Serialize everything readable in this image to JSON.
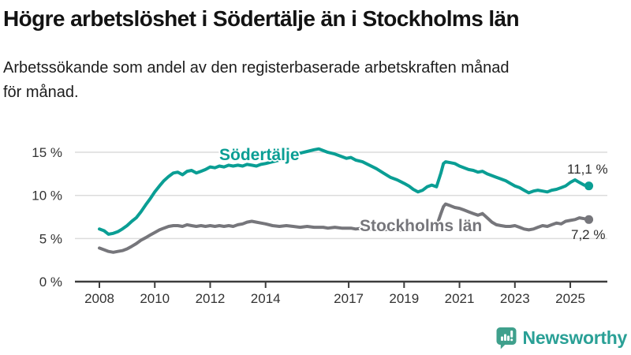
{
  "header": {
    "title": "Högre arbetslöshet i Södertälje än i Stockholms län",
    "subtitle_lines": [
      "Arbetssökande som andel av den registerbaserade arbetskraften månad",
      "för månad."
    ]
  },
  "chart_data": {
    "type": "line",
    "title": "Högre arbetslöshet i Södertälje än i Stockholms län",
    "subtitle": "Arbetssökande som andel av den registerbaserade arbetskraften månad för månad.",
    "grid": "horizontal-only",
    "x_axis": {
      "tick_labels": [
        "2008",
        "2010",
        "2012",
        "2014",
        "2017",
        "2019",
        "2021",
        "2023",
        "2025"
      ],
      "tick_values": [
        2008,
        2010,
        2012,
        2014,
        2017,
        2019,
        2021,
        2023,
        2025
      ],
      "range": [
        2007.1,
        2026.3
      ]
    },
    "y_axis": {
      "tick_labels": [
        "0 %",
        "5 %",
        "10 %",
        "15 %"
      ],
      "tick_values": [
        0,
        5,
        10,
        15
      ],
      "range": [
        0,
        16.8
      ],
      "unit": "%"
    },
    "x": [
      2008.0,
      2008.17,
      2008.33,
      2008.5,
      2008.67,
      2008.83,
      2009.0,
      2009.17,
      2009.33,
      2009.5,
      2009.67,
      2009.83,
      2010.0,
      2010.17,
      2010.33,
      2010.5,
      2010.67,
      2010.83,
      2011.0,
      2011.17,
      2011.33,
      2011.5,
      2011.67,
      2011.83,
      2012.0,
      2012.17,
      2012.33,
      2012.5,
      2012.67,
      2012.83,
      2013.0,
      2013.17,
      2013.33,
      2013.5,
      2013.67,
      2013.83,
      2014.0,
      2014.25,
      2014.5,
      2014.75,
      2015.0,
      2015.25,
      2015.5,
      2015.75,
      2015.92,
      2016.08,
      2016.25,
      2016.5,
      2016.75,
      2016.92,
      2017.08,
      2017.25,
      2017.5,
      2017.75,
      2018.0,
      2018.25,
      2018.5,
      2018.75,
      2019.0,
      2019.17,
      2019.33,
      2019.5,
      2019.67,
      2019.83,
      2020.0,
      2020.17,
      2020.33,
      2020.42,
      2020.5,
      2020.67,
      2020.83,
      2021.0,
      2021.17,
      2021.33,
      2021.5,
      2021.67,
      2021.83,
      2022.0,
      2022.17,
      2022.33,
      2022.5,
      2022.67,
      2022.83,
      2023.0,
      2023.17,
      2023.33,
      2023.5,
      2023.67,
      2023.83,
      2024.0,
      2024.17,
      2024.33,
      2024.5,
      2024.67,
      2024.83,
      2025.0,
      2025.17,
      2025.33,
      2025.5,
      2025.67
    ],
    "series": [
      {
        "name": "Södertälje",
        "color": "#0a9e94",
        "end_label": "11,1 %",
        "end_value": 11.1,
        "values": [
          6.1,
          5.9,
          5.5,
          5.6,
          5.8,
          6.1,
          6.5,
          7.0,
          7.4,
          8.1,
          8.9,
          9.6,
          10.4,
          11.1,
          11.7,
          12.2,
          12.6,
          12.7,
          12.4,
          12.8,
          12.9,
          12.6,
          12.8,
          13.0,
          13.3,
          13.2,
          13.4,
          13.3,
          13.5,
          13.4,
          13.5,
          13.4,
          13.6,
          13.5,
          13.4,
          13.6,
          13.7,
          13.9,
          14.1,
          14.4,
          14.7,
          14.9,
          15.1,
          15.3,
          15.4,
          15.2,
          15.0,
          14.8,
          14.5,
          14.3,
          14.4,
          14.1,
          13.9,
          13.5,
          13.1,
          12.6,
          12.1,
          11.8,
          11.4,
          11.1,
          10.7,
          10.4,
          10.6,
          11.0,
          11.2,
          11.0,
          12.6,
          13.7,
          13.9,
          13.8,
          13.7,
          13.4,
          13.2,
          13.0,
          12.9,
          12.7,
          12.8,
          12.5,
          12.3,
          12.1,
          11.9,
          11.7,
          11.4,
          11.1,
          10.9,
          10.6,
          10.3,
          10.5,
          10.6,
          10.5,
          10.4,
          10.6,
          10.7,
          10.9,
          11.1,
          11.5,
          11.8,
          11.5,
          11.2,
          11.1
        ]
      },
      {
        "name": "Stockholms län",
        "color": "#76767b",
        "end_label": "7,2 %",
        "end_value": 7.2,
        "values": [
          3.9,
          3.7,
          3.5,
          3.4,
          3.5,
          3.6,
          3.8,
          4.1,
          4.4,
          4.8,
          5.1,
          5.4,
          5.7,
          6.0,
          6.2,
          6.4,
          6.5,
          6.5,
          6.4,
          6.6,
          6.5,
          6.4,
          6.5,
          6.4,
          6.5,
          6.4,
          6.5,
          6.4,
          6.5,
          6.4,
          6.6,
          6.7,
          6.9,
          7.0,
          6.9,
          6.8,
          6.7,
          6.5,
          6.4,
          6.5,
          6.4,
          6.3,
          6.4,
          6.3,
          6.3,
          6.3,
          6.2,
          6.3,
          6.2,
          6.2,
          6.2,
          6.1,
          6.2,
          6.1,
          6.1,
          6.0,
          6.1,
          6.0,
          6.0,
          6.1,
          6.1,
          6.1,
          6.2,
          6.2,
          6.2,
          6.4,
          7.9,
          8.7,
          9.0,
          8.8,
          8.6,
          8.5,
          8.3,
          8.1,
          7.9,
          7.7,
          7.9,
          7.4,
          6.9,
          6.6,
          6.5,
          6.4,
          6.4,
          6.5,
          6.3,
          6.1,
          6.0,
          6.1,
          6.3,
          6.5,
          6.4,
          6.6,
          6.8,
          6.7,
          7.0,
          7.1,
          7.2,
          7.4,
          7.3,
          7.2
        ]
      }
    ],
    "style": {
      "grid_color": "#dcdcdc",
      "axis_color": "#3d3d3d",
      "tick_label_color": "#333333"
    }
  },
  "footer": {
    "brand": "Newsworthy"
  }
}
